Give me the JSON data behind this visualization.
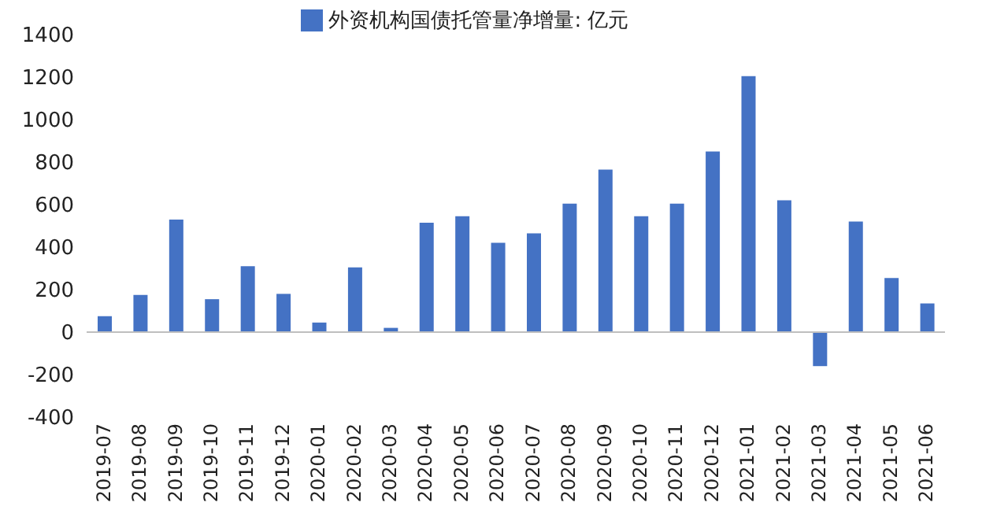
{
  "chart_data": {
    "type": "bar",
    "categories": [
      "2019-07",
      "2019-08",
      "2019-09",
      "2019-10",
      "2019-11",
      "2019-12",
      "2020-01",
      "2020-02",
      "2020-03",
      "2020-04",
      "2020-05",
      "2020-06",
      "2020-07",
      "2020-08",
      "2020-09",
      "2020-10",
      "2020-11",
      "2020-12",
      "2021-01",
      "2021-02",
      "2021-03",
      "2021-04",
      "2021-05",
      "2021-06"
    ],
    "series": [
      {
        "name": "外资机构国债托管量净增量: 亿元",
        "color": "#4472c4",
        "values": [
          75,
          175,
          530,
          155,
          310,
          180,
          45,
          305,
          20,
          515,
          545,
          420,
          465,
          605,
          765,
          545,
          605,
          850,
          1205,
          620,
          -160,
          520,
          255,
          135
        ]
      }
    ],
    "ylim": [
      -400,
      1400
    ],
    "yticks": [
      -400,
      -200,
      0,
      200,
      400,
      600,
      800,
      1000,
      1200,
      1400
    ],
    "ref_lines": [
      {
        "axis": "y",
        "value": 0,
        "color": "#bfbfbf"
      }
    ],
    "legend": "top"
  }
}
